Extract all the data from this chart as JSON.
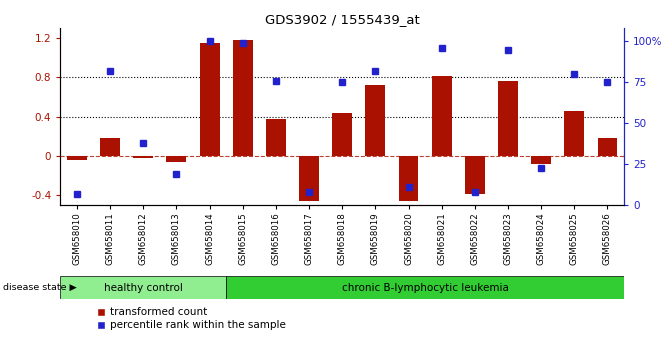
{
  "title": "GDS3902 / 1555439_at",
  "categories": [
    "GSM658010",
    "GSM658011",
    "GSM658012",
    "GSM658013",
    "GSM658014",
    "GSM658015",
    "GSM658016",
    "GSM658017",
    "GSM658018",
    "GSM658019",
    "GSM658020",
    "GSM658021",
    "GSM658022",
    "GSM658023",
    "GSM658024",
    "GSM658025",
    "GSM658026"
  ],
  "bar_values": [
    -0.04,
    0.18,
    -0.02,
    -0.06,
    1.15,
    1.18,
    0.38,
    -0.46,
    0.44,
    0.72,
    -0.46,
    0.82,
    -0.38,
    0.76,
    -0.08,
    0.46,
    0.18
  ],
  "percentile_pct": [
    7,
    82,
    38,
    19,
    100,
    99,
    76,
    8,
    75,
    82,
    11,
    96,
    8,
    95,
    23,
    80,
    75
  ],
  "bar_color": "#aa1100",
  "dot_color": "#2222cc",
  "ylim_left": [
    -0.5,
    1.3
  ],
  "ylim_right": [
    0,
    108
  ],
  "yticks_left": [
    -0.4,
    0.0,
    0.4,
    0.8,
    1.2
  ],
  "ytick_labels_left": [
    "-0.4",
    "0",
    "0.4",
    "0.8",
    "1.2"
  ],
  "yticks_right": [
    0,
    25,
    50,
    75,
    100
  ],
  "ytick_labels_right": [
    "0",
    "25",
    "50",
    "75",
    "100%"
  ],
  "hline_y": [
    0.4,
    0.8
  ],
  "group1_label": "healthy control",
  "group2_label": "chronic B-lymphocytic leukemia",
  "group1_count": 5,
  "group1_color": "#90ee90",
  "group2_color": "#32cd32",
  "disease_state_label": "disease state",
  "legend_bar_label": "transformed count",
  "legend_dot_label": "percentile rank within the sample",
  "bar_width": 0.6
}
